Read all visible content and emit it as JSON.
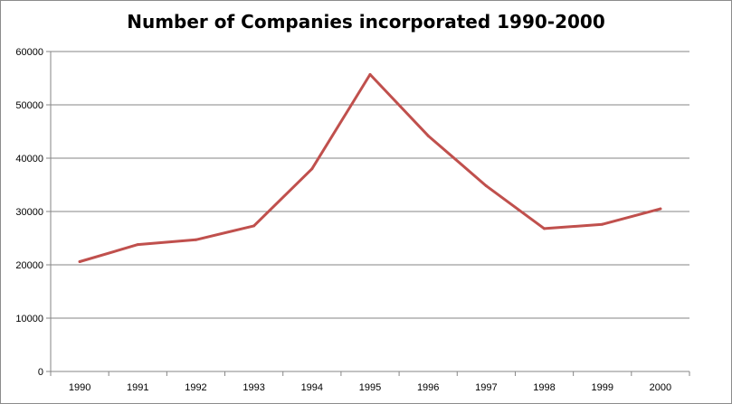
{
  "chart_data": {
    "type": "line",
    "title": "Number of Companies incorporated 1990-2000",
    "xlabel": "",
    "ylabel": "",
    "categories": [
      "1990",
      "1991",
      "1992",
      "1993",
      "1994",
      "1995",
      "1996",
      "1997",
      "1998",
      "1999",
      "2000"
    ],
    "series": [
      {
        "values": [
          20600,
          23800,
          24700,
          27300,
          38000,
          55700,
          44200,
          34800,
          26800,
          27600,
          30500
        ],
        "color": "#c0504d"
      }
    ],
    "ylim": [
      0,
      60000
    ],
    "yticks": [
      "0",
      "10000",
      "20000",
      "30000",
      "40000",
      "50000",
      "60000"
    ],
    "grid": true,
    "legend": "none"
  }
}
